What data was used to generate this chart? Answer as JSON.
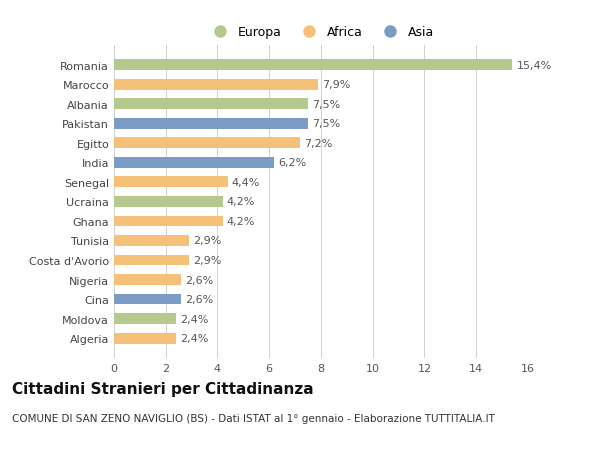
{
  "title": "Cittadini Stranieri per Cittadinanza",
  "subtitle": "COMUNE DI SAN ZENO NAVIGLIO (BS) - Dati ISTAT al 1° gennaio - Elaborazione TUTTITALIA.IT",
  "categories": [
    "Romania",
    "Marocco",
    "Albania",
    "Pakistan",
    "Egitto",
    "India",
    "Senegal",
    "Ucraina",
    "Ghana",
    "Tunisia",
    "Costa d'Avorio",
    "Nigeria",
    "Cina",
    "Moldova",
    "Algeria"
  ],
  "values": [
    15.4,
    7.9,
    7.5,
    7.5,
    7.2,
    6.2,
    4.4,
    4.2,
    4.2,
    2.9,
    2.9,
    2.6,
    2.6,
    2.4,
    2.4
  ],
  "labels": [
    "15,4%",
    "7,9%",
    "7,5%",
    "7,5%",
    "7,2%",
    "6,2%",
    "4,4%",
    "4,2%",
    "4,2%",
    "2,9%",
    "2,9%",
    "2,6%",
    "2,6%",
    "2,4%",
    "2,4%"
  ],
  "continents": [
    "Europa",
    "Africa",
    "Europa",
    "Asia",
    "Africa",
    "Asia",
    "Africa",
    "Europa",
    "Africa",
    "Africa",
    "Africa",
    "Africa",
    "Asia",
    "Europa",
    "Africa"
  ],
  "colors": {
    "Europa": "#b5c98e",
    "Africa": "#f5c17a",
    "Asia": "#7a9cc4"
  },
  "legend_labels": [
    "Europa",
    "Africa",
    "Asia"
  ],
  "xlim": [
    0,
    16
  ],
  "xticks": [
    0,
    2,
    4,
    6,
    8,
    10,
    12,
    14,
    16
  ],
  "background_color": "#ffffff",
  "grid_color": "#d0d0d0",
  "bar_height": 0.55,
  "label_fontsize": 8,
  "tick_fontsize": 8,
  "title_fontsize": 11,
  "subtitle_fontsize": 7.5
}
